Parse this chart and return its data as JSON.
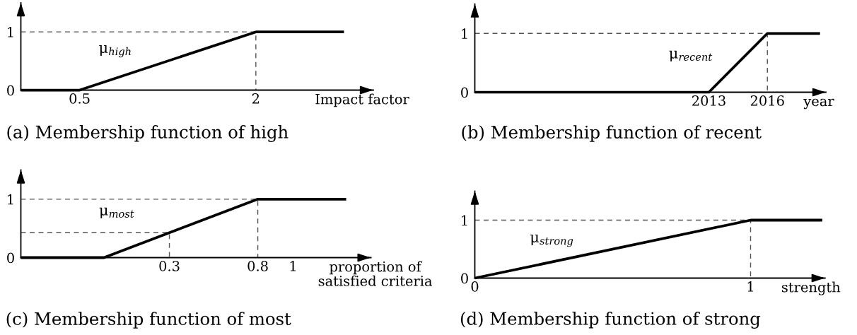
{
  "chart_data": [
    {
      "type": "line",
      "title": "(a) Membership function of high",
      "xlabel": "Impact factor",
      "xlim": [
        0,
        3
      ],
      "ylim": [
        0,
        1.5
      ],
      "xticks": [
        0.5,
        2
      ],
      "yticks": [
        0,
        1
      ],
      "line_style": "solid",
      "series": [
        {
          "color": "#000000",
          "x": [
            0,
            0.5,
            2,
            2.75
          ],
          "values": [
            0,
            0,
            1,
            1
          ]
        },
        {
          "color": "#555555",
          "line_style": "dashed",
          "x": [
            0,
            2,
            2
          ],
          "values": [
            1,
            1,
            0
          ]
        }
      ],
      "annotations": [
        "μ$_{high}$"
      ]
    },
    {
      "type": "line",
      "title": "(b) Membership function of recent",
      "xlabel": "year",
      "xlim": [
        2001,
        2019
      ],
      "ylim": [
        0,
        1.5
      ],
      "xticks": [
        2013,
        2016
      ],
      "yticks": [
        0,
        1
      ],
      "line_style": "solid",
      "series": [
        {
          "color": "#000000",
          "x": [
            2001,
            2013,
            2016,
            2018.7
          ],
          "values": [
            0,
            0,
            1,
            1
          ]
        },
        {
          "color": "#555555",
          "line_style": "dashed",
          "x": [
            2001,
            2016,
            2016
          ],
          "values": [
            1,
            1,
            0
          ]
        }
      ],
      "annotations": [
        "μ$_{recent}$"
      ]
    },
    {
      "type": "line",
      "title": "(c) Membership function of most",
      "xlabel": "proportion of\nsatisfied criteria",
      "xlim": [
        -0.54,
        1.44
      ],
      "ylim": [
        0,
        1.5
      ],
      "xticks": [
        0.3,
        0.8,
        1
      ],
      "yticks": [
        0,
        1
      ],
      "line_style": "solid",
      "series": [
        {
          "color": "#000000",
          "x": [
            -0.54,
            -0.07,
            0.8,
            1.3
          ],
          "values": [
            0,
            0,
            1,
            1
          ]
        },
        {
          "color": "#555555",
          "line_style": "dashed",
          "x": [
            -0.54,
            0.8,
            0.8
          ],
          "values": [
            1,
            1,
            0
          ]
        },
        {
          "color": "#555555",
          "line_style": "dashed",
          "x": [
            -0.54,
            0.3,
            0.3
          ],
          "values": [
            0.43,
            0.43,
            0
          ]
        }
      ],
      "annotations": [
        "μ$_{most}$"
      ]
    },
    {
      "type": "line",
      "title": "(d) Membership function of strong",
      "xlabel": "strength",
      "xlim": [
        0,
        1.27
      ],
      "ylim": [
        0,
        1.5
      ],
      "xticks": [
        0,
        1
      ],
      "yticks": [
        0,
        1
      ],
      "line_style": "solid",
      "series": [
        {
          "color": "#000000",
          "x": [
            0,
            1,
            1.26
          ],
          "values": [
            0,
            1,
            1
          ]
        },
        {
          "color": "#555555",
          "line_style": "dashed",
          "x": [
            0,
            1,
            1
          ],
          "values": [
            1,
            1,
            0
          ]
        }
      ],
      "annotations": [
        "μ$_{strong}$"
      ]
    }
  ]
}
